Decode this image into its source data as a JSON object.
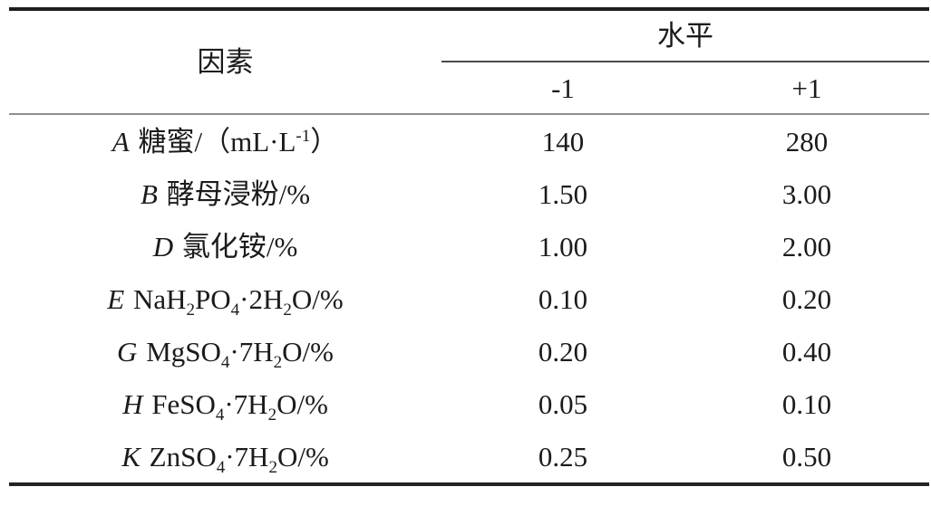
{
  "table": {
    "factor_header": "因素",
    "level_header": "水平",
    "low_header": "-1",
    "high_header": "+1",
    "rows": [
      {
        "label": [
          {
            "t": "A",
            "s": "i"
          },
          {
            "t": " 糖蜜/（mL·L"
          },
          {
            "t": "-1",
            "s": "sup"
          },
          {
            "t": "）"
          }
        ],
        "low": "140",
        "high": "280"
      },
      {
        "label": [
          {
            "t": "B",
            "s": "i"
          },
          {
            "t": " 酵母浸粉/%"
          }
        ],
        "low": "1.50",
        "high": "3.00"
      },
      {
        "label": [
          {
            "t": "D",
            "s": "i"
          },
          {
            "t": " 氯化铵/%"
          }
        ],
        "low": "1.00",
        "high": "2.00"
      },
      {
        "label": [
          {
            "t": "E",
            "s": "i"
          },
          {
            "t": " NaH"
          },
          {
            "t": "2",
            "s": "sub"
          },
          {
            "t": "PO"
          },
          {
            "t": "4",
            "s": "sub"
          },
          {
            "t": "·2H"
          },
          {
            "t": "2",
            "s": "sub"
          },
          {
            "t": "O/%"
          }
        ],
        "low": "0.10",
        "high": "0.20"
      },
      {
        "label": [
          {
            "t": "G",
            "s": "i"
          },
          {
            "t": " MgSO"
          },
          {
            "t": "4",
            "s": "sub"
          },
          {
            "t": "·7H"
          },
          {
            "t": "2",
            "s": "sub"
          },
          {
            "t": "O/%"
          }
        ],
        "low": "0.20",
        "high": "0.40"
      },
      {
        "label": [
          {
            "t": "H",
            "s": "i"
          },
          {
            "t": " FeSO"
          },
          {
            "t": "4",
            "s": "sub"
          },
          {
            "t": "·7H"
          },
          {
            "t": "2",
            "s": "sub"
          },
          {
            "t": "O/%"
          }
        ],
        "low": "0.05",
        "high": "0.10"
      },
      {
        "label": [
          {
            "t": "K",
            "s": "i"
          },
          {
            "t": " ZnSO"
          },
          {
            "t": "4",
            "s": "sub"
          },
          {
            "t": "·7H"
          },
          {
            "t": "2",
            "s": "sub"
          },
          {
            "t": "O/%"
          }
        ],
        "low": "0.25",
        "high": "0.50"
      }
    ],
    "rule_colors": {
      "heavy": "#1e1e1e",
      "level_underline": "#4a4a4a",
      "header_separator": "#8e8e8e"
    }
  }
}
